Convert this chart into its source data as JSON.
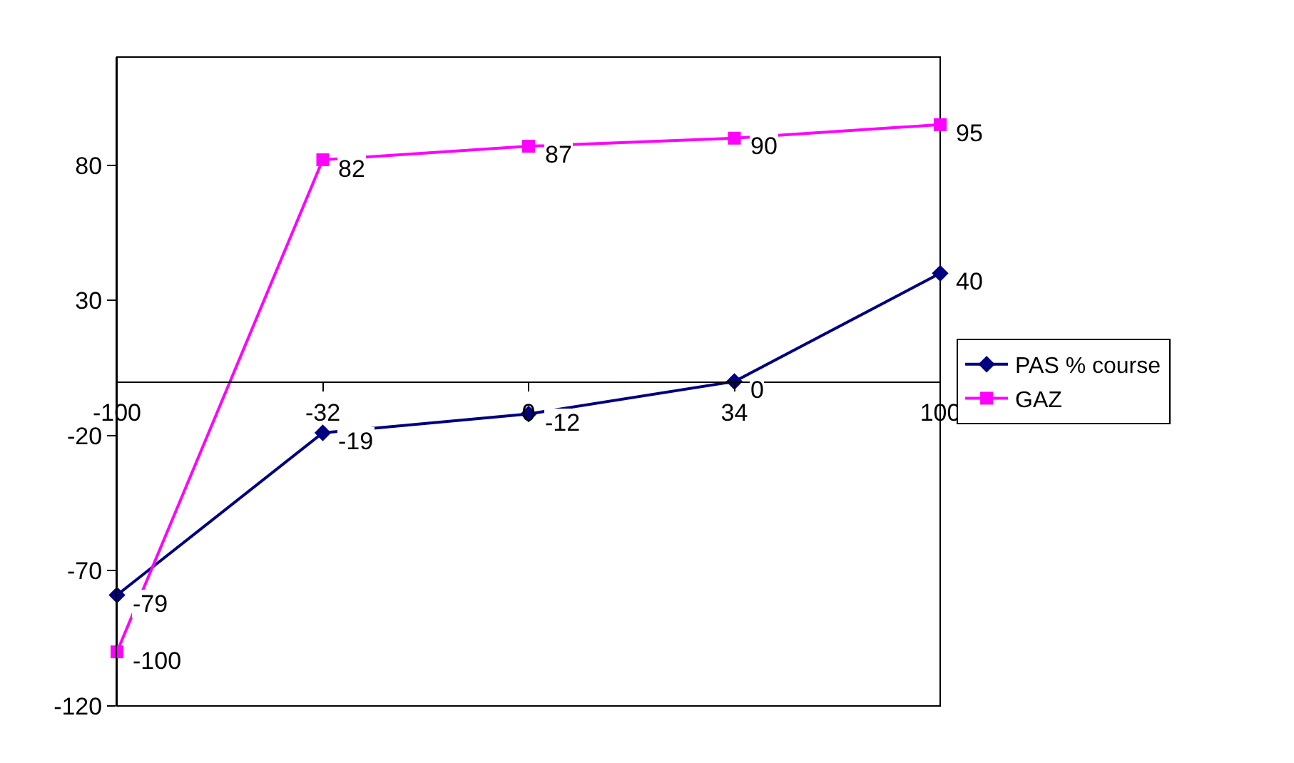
{
  "chart_data": {
    "type": "line",
    "categories": [
      "-100",
      "-32",
      "0",
      "34",
      "100"
    ],
    "series": [
      {
        "name": "PAS % course",
        "color": "#000080",
        "values": [
          -79,
          -19,
          -12,
          0,
          40
        ],
        "marker": "diamond"
      },
      {
        "name": "GAZ",
        "color": "#ff00ff",
        "values": [
          -100,
          82,
          87,
          90,
          95
        ],
        "marker": "square"
      }
    ],
    "ylim": [
      -120,
      120
    ],
    "yticks": [
      -120,
      -70,
      -20,
      30,
      80
    ],
    "data_labels": true,
    "legend": "right",
    "grid": false,
    "line_style": "solid"
  }
}
